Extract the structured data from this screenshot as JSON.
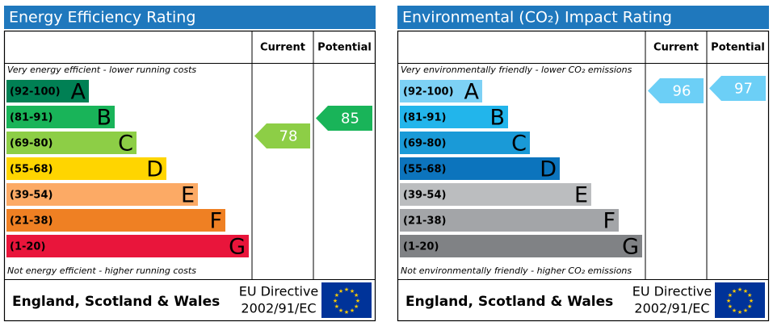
{
  "panels": [
    {
      "title": "Energy Efficiency Rating",
      "current_header": "Current",
      "potential_header": "Potential",
      "top_note": "Very energy efficient - lower running costs",
      "bottom_note": "Not energy efficient - higher running costs",
      "bands": [
        {
          "range": "(92-100)",
          "letter": "A",
          "color": "#008054"
        },
        {
          "range": "(81-91)",
          "letter": "B",
          "color": "#19b459"
        },
        {
          "range": "(69-80)",
          "letter": "C",
          "color": "#8dce46"
        },
        {
          "range": "(55-68)",
          "letter": "D",
          "color": "#ffd500"
        },
        {
          "range": "(39-54)",
          "letter": "E",
          "color": "#fcaa65"
        },
        {
          "range": "(21-38)",
          "letter": "F",
          "color": "#ef8023"
        },
        {
          "range": "(1-20)",
          "letter": "G",
          "color": "#e9153b"
        }
      ],
      "current": 78,
      "current_color": "#8dce46",
      "potential": 85,
      "potential_color": "#19b459",
      "region": "England, Scotland & Wales",
      "directive": [
        "EU Directive",
        "2002/91/EC"
      ]
    },
    {
      "title": "Environmental (CO₂) Impact Rating",
      "current_header": "Current",
      "potential_header": "Potential",
      "top_note": "Very environmentally friendly - lower CO₂ emissions",
      "bottom_note": "Not environmentally friendly - higher CO₂ emissions",
      "bands": [
        {
          "range": "(92-100)",
          "letter": "A",
          "color": "#7dd1f5"
        },
        {
          "range": "(81-91)",
          "letter": "B",
          "color": "#22b5eb"
        },
        {
          "range": "(69-80)",
          "letter": "C",
          "color": "#1a9ad7"
        },
        {
          "range": "(55-68)",
          "letter": "D",
          "color": "#0c74bd"
        },
        {
          "range": "(39-54)",
          "letter": "E",
          "color": "#bbbdbf"
        },
        {
          "range": "(21-38)",
          "letter": "F",
          "color": "#a3a5a8"
        },
        {
          "range": "(1-20)",
          "letter": "G",
          "color": "#808285"
        }
      ],
      "current": 96,
      "current_color": "#6ccff6",
      "potential": 97,
      "potential_color": "#6ccff6",
      "region": "England, Scotland & Wales",
      "directive": [
        "EU Directive",
        "2002/91/EC"
      ]
    }
  ]
}
